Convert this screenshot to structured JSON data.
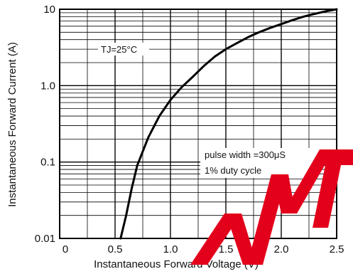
{
  "chart_data": {
    "type": "line",
    "title": "",
    "xlabel": "Instantaneous Forward Voltage (V)",
    "ylabel": "Instantaneous Forward Current (A)",
    "xlim": [
      0,
      2.5
    ],
    "ylim": [
      0.01,
      10
    ],
    "yscale": "log",
    "grid": true,
    "x_ticks": [
      0,
      0.5,
      1.0,
      1.5,
      2.0,
      2.5
    ],
    "x_tick_labels": [
      "0",
      "0.5",
      "1.0",
      "1.5",
      "2.0",
      "2.5"
    ],
    "y_ticks": [
      0.01,
      0.1,
      1.0,
      10
    ],
    "y_tick_labels": [
      "0.01",
      "0.1",
      "1.0",
      "10"
    ],
    "annotations": [
      "TJ=25°C",
      "pulse width =300μS",
      "1% duty cycle"
    ],
    "series": [
      {
        "x": [
          0.55,
          0.6,
          0.65,
          0.7,
          0.8,
          0.9,
          1.0,
          1.1,
          1.2,
          1.3,
          1.4,
          1.5,
          1.6,
          1.7,
          1.8,
          1.9,
          2.0,
          2.1,
          2.2,
          2.3,
          2.4,
          2.5
        ],
        "y": [
          0.01,
          0.02,
          0.045,
          0.09,
          0.21,
          0.4,
          0.65,
          0.95,
          1.3,
          1.8,
          2.4,
          3.0,
          3.6,
          4.3,
          5.0,
          5.7,
          6.4,
          7.2,
          8.0,
          8.7,
          9.4,
          10
        ]
      }
    ]
  },
  "watermark_color": "#e3001b"
}
